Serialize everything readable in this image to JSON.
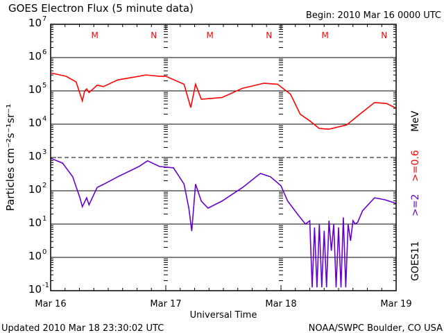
{
  "chart_data": {
    "type": "line",
    "title": "GOES Electron Flux (5 minute data)",
    "begin": "Begin: 2010 Mar 16 0000 UTC",
    "xlabel": "Universal Time",
    "ylabel": "Particles cm⁻²s⁻¹sr⁻¹",
    "yscale": "log",
    "ylim_log10": [
      -1,
      7
    ],
    "xlim_hours": [
      0,
      72
    ],
    "x_tick_labels": [
      "Mar 16",
      "Mar 17",
      "Mar 18",
      "Mar 19"
    ],
    "y_tick_exponents": [
      "7",
      "6",
      "5",
      "4",
      "3",
      "2",
      "1",
      "0",
      "-1"
    ],
    "dashed_level_log10": 3,
    "day_markers": [
      {
        "label": "M",
        "hour": 9.2
      },
      {
        "label": "N",
        "hour": 21.5
      },
      {
        "label": "M",
        "hour": 33.2
      },
      {
        "label": "N",
        "hour": 45.5
      },
      {
        "label": "M",
        "hour": 57.2
      },
      {
        "label": "N",
        "hour": 69.5
      }
    ],
    "right_labels": {
      "satellite": "GOES11",
      "ch2": ">=2",
      "ch1": ">=0.6",
      "unit": "MeV"
    },
    "series": [
      {
        "name": ">=0.6 MeV",
        "color": "#ff0000",
        "hours": [
          0,
          3.2,
          5.3,
          6.6,
          7.1,
          7.5,
          8,
          9.7,
          11,
          14,
          18.4,
          19.8,
          22.7,
          24,
          27.8,
          29.2,
          30.2,
          31.4,
          35.7,
          40,
          44.4,
          47.3,
          48,
          50,
          52,
          54,
          56,
          58,
          61.7,
          64,
          67.5,
          70,
          72
        ],
        "log10": [
          5.54,
          5.44,
          5.27,
          4.7,
          5.0,
          5.06,
          4.95,
          5.17,
          5.13,
          5.33,
          5.44,
          5.48,
          5.44,
          5.44,
          5.2,
          4.5,
          5.2,
          4.75,
          4.8,
          5.08,
          5.23,
          5.2,
          5.12,
          4.9,
          4.3,
          4.1,
          3.87,
          3.85,
          3.98,
          4.25,
          4.65,
          4.62,
          4.48
        ]
      },
      {
        "name": ">=2 MeV",
        "color": "#6600cc",
        "hours": [
          0,
          2.5,
          4.6,
          6.1,
          6.6,
          7.5,
          8,
          9.7,
          11.1,
          14,
          18.4,
          20.2,
          22.7,
          25.6,
          27.8,
          28.8,
          29.4,
          30.2,
          31.4,
          32.8,
          35.7,
          40,
          43.7,
          45.8,
          48,
          49.4,
          51.6,
          53.1,
          54,
          54.5,
          55,
          55.5,
          56,
          56.5,
          57,
          57.5,
          58,
          58.5,
          59,
          59.5,
          60,
          60.5,
          61,
          61.5,
          62,
          62.5,
          63,
          63.5,
          64,
          65,
          67.5,
          69.7,
          72
        ],
        "log10": [
          2.98,
          2.83,
          2.42,
          1.79,
          1.52,
          1.79,
          1.58,
          2.1,
          2.2,
          2.42,
          2.73,
          2.9,
          2.73,
          2.69,
          2.2,
          1.48,
          0.79,
          2.2,
          1.69,
          1.48,
          1.69,
          2.1,
          2.52,
          2.42,
          2.15,
          1.69,
          1.27,
          1.0,
          1.1,
          -0.9,
          0.9,
          -0.9,
          1.0,
          -0.9,
          0.8,
          -0.9,
          1.1,
          0.2,
          1.0,
          -0.9,
          0.9,
          -0.9,
          1.2,
          -0.9,
          1.0,
          0.5,
          1.1,
          1.0,
          1.06,
          1.4,
          1.79,
          1.73,
          1.62
        ]
      }
    ]
  },
  "footer": {
    "updated": "Updated 2010 Mar 18 23:30:02 UTC",
    "source": "NOAA/SWPC Boulder, CO USA"
  }
}
